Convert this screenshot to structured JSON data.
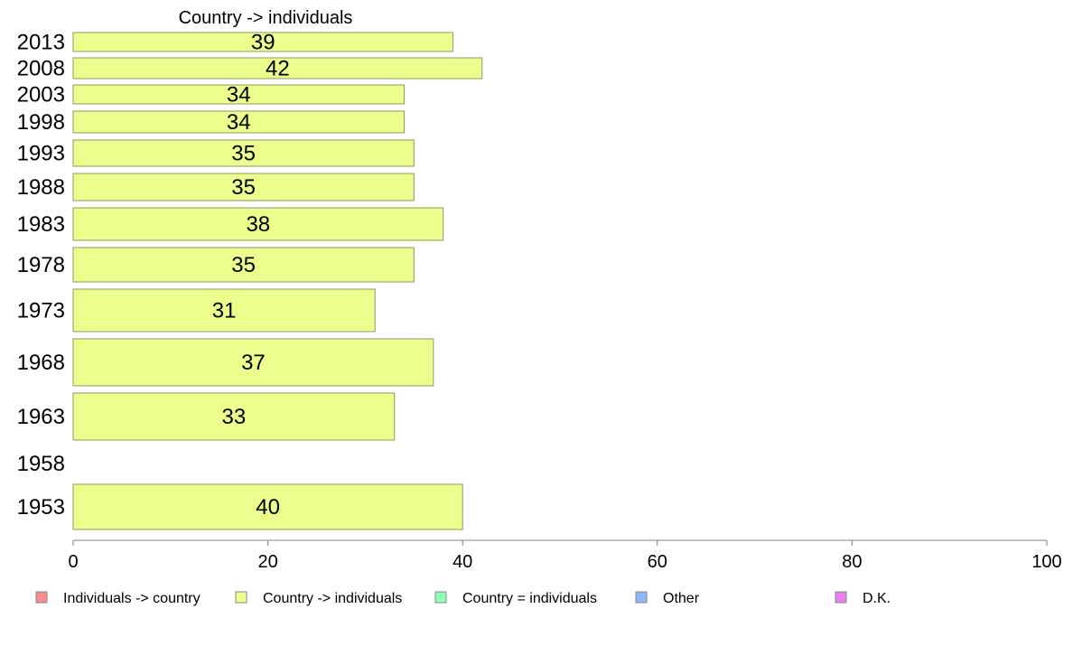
{
  "chart_data": {
    "type": "bar",
    "orientation": "horizontal",
    "title": "Country -> individuals",
    "categories": [
      "2013",
      "2008",
      "2003",
      "1998",
      "1993",
      "1988",
      "1983",
      "1978",
      "1973",
      "1968",
      "1963",
      "1958",
      "1953"
    ],
    "series": [
      {
        "name": "Country -> individuals",
        "color": "#ebff8c",
        "values": [
          39,
          42,
          34,
          34,
          35,
          35,
          38,
          35,
          31,
          37,
          33,
          null,
          40
        ],
        "labels": [
          "39",
          "42",
          "34",
          "34",
          "35",
          "35",
          "38",
          "35",
          "31",
          "37",
          "33",
          "",
          "40"
        ]
      }
    ],
    "xlim": [
      0,
      100
    ],
    "xticks": [
      "0",
      "20",
      "40",
      "60",
      "80",
      "100"
    ],
    "grid": false,
    "legend": {
      "placement": "bottom",
      "items": [
        {
          "label": "Individuals -> country",
          "color": "#f78f8f"
        },
        {
          "label": "Country -> individuals",
          "color": "#ebff8c"
        },
        {
          "label": "Country = individuals",
          "color": "#8fffb4"
        },
        {
          "label": "Other",
          "color": "#8fb8f7"
        },
        {
          "label": "D.K.",
          "color": "#eb7ff2"
        }
      ]
    }
  }
}
